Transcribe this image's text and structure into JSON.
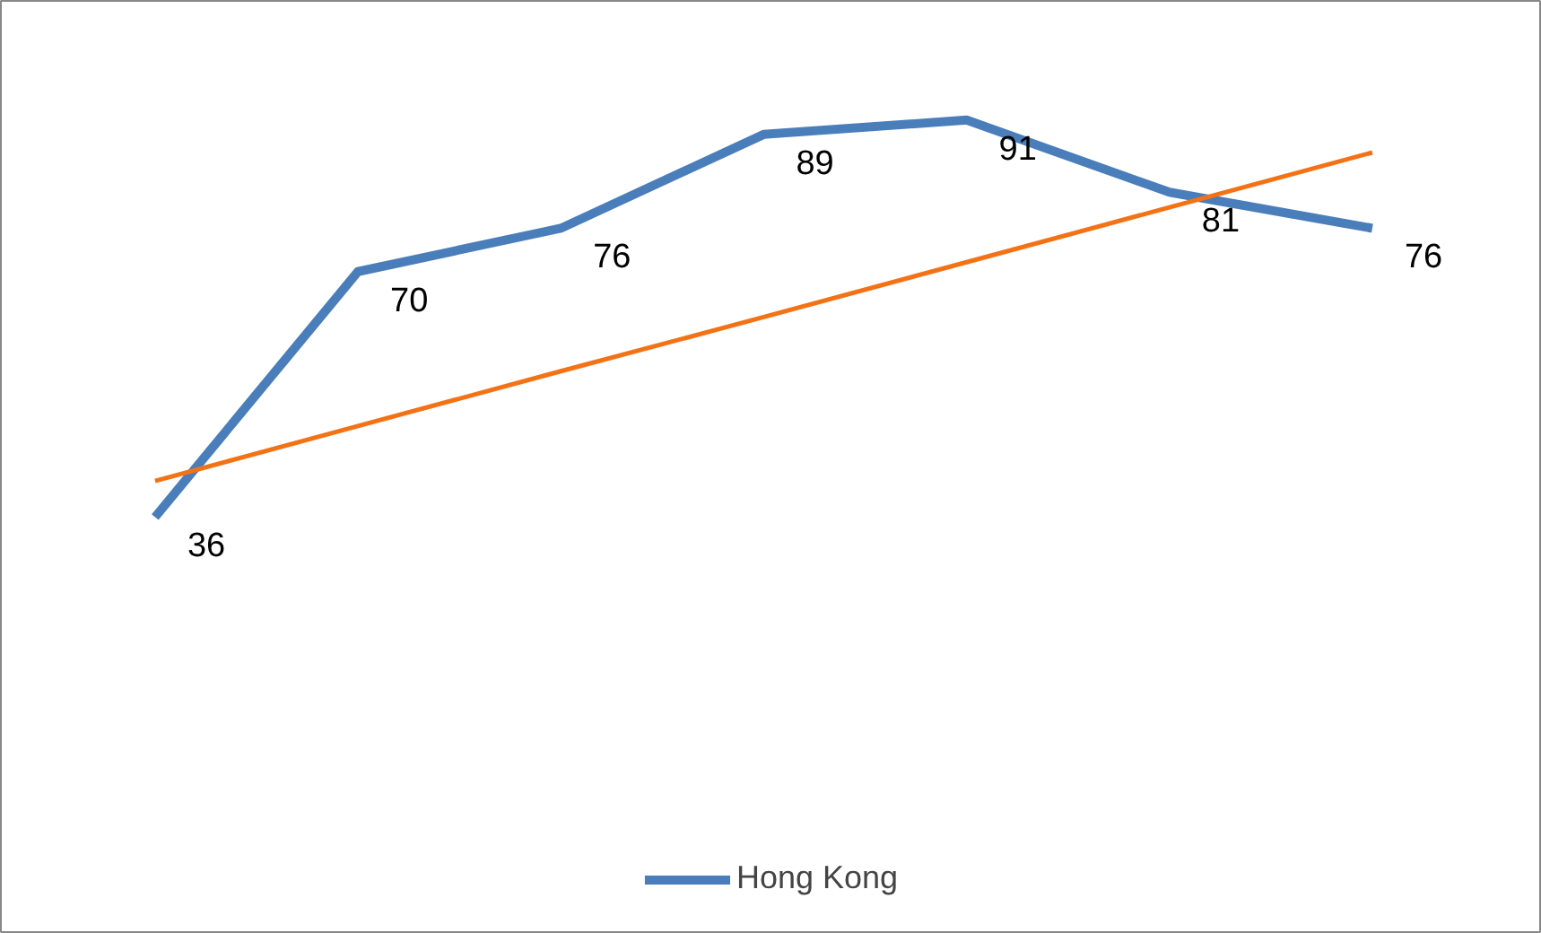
{
  "chart_data": {
    "type": "line",
    "categories": [
      null,
      null,
      null,
      null,
      null,
      null,
      null
    ],
    "legend": "bottom",
    "grid": false,
    "line_style": "solid",
    "marker": "none",
    "series": [
      {
        "name": "Hong Kong",
        "color": "#4a7ebb",
        "values": [
          36,
          70,
          76,
          89,
          91,
          81,
          76
        ],
        "value_labels": [
          "36",
          "70",
          "76",
          "89",
          "91",
          "81",
          "76"
        ]
      },
      {
        "type": "line",
        "color": "#f47216",
        "values": [
          41.0,
          48.6,
          56.2,
          63.7,
          71.3,
          78.9,
          86.5
        ]
      }
    ]
  }
}
